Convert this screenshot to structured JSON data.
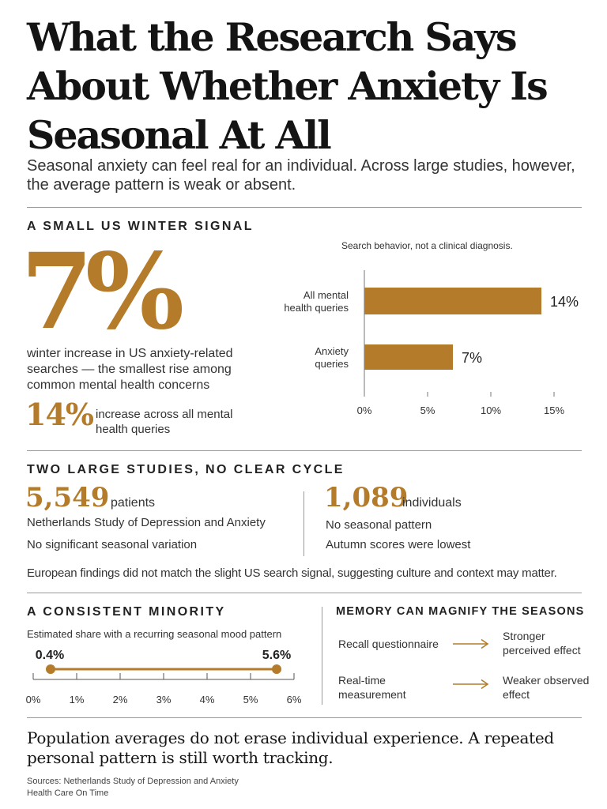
{
  "title": "What the Research Says About Whether Anxiety Is Seasonal At All",
  "subtitle": "Seasonal anxiety can feel real for an individual. Across large studies, however, the average pattern is weak or absent.",
  "section1": {
    "heading": "A SMALL US WINTER SIGNAL",
    "big_stat": "7%",
    "big_desc": "winter increase in US anxiety-related searches — the smallest rise among common mental health concerns",
    "small_stat": "14%",
    "small_desc": "increase across all mental health queries",
    "chart_note": "Search behavior, not a clinical diagnosis."
  },
  "section2": {
    "heading": "TWO LARGE STUDIES, NO CLEAR CYCLE",
    "study1": {
      "number": "5,549",
      "unit": "patients",
      "name": "Netherlands Study of Depression and Anxiety",
      "finding": "No significant seasonal variation"
    },
    "study2": {
      "number": "1,089",
      "unit": "individuals",
      "name": "No seasonal pattern",
      "finding": "Autumn scores were lowest"
    },
    "note": "European findings did not match the slight US search signal, suggesting culture and context may matter."
  },
  "section3": {
    "heading": "A CONSISTENT MINORITY",
    "note": "Estimated share with a recurring seasonal mood pattern"
  },
  "section4": {
    "heading": "MEMORY CAN MAGNIFY THE SEASONS",
    "rows": [
      {
        "method": "Recall questionnaire",
        "result": "Stronger perceived effect"
      },
      {
        "method": "Real-time measurement",
        "result": "Weaker observed effect"
      }
    ]
  },
  "footer": {
    "text": "Population averages do not erase individual experience. A repeated personal pattern is still worth tracking.",
    "sources_line1": "Sources: Netherlands Study of Depression and Anxiety",
    "sources_line2": "Health Care On Time"
  },
  "colors": {
    "accent": "#b47c2a",
    "text": "#222222",
    "rule": "#9a9a9a"
  },
  "chart_data": [
    {
      "type": "bar",
      "orientation": "horizontal",
      "categories": [
        "All mental health queries",
        "Anxiety queries"
      ],
      "values": [
        14,
        7
      ],
      "value_labels": [
        "14%",
        "7%"
      ],
      "x_ticks": [
        "0%",
        "5%",
        "10%",
        "15%"
      ],
      "xlim": [
        0,
        15
      ],
      "grid": false
    },
    {
      "type": "range",
      "low": 0.4,
      "high": 5.6,
      "low_label": "0.4%",
      "high_label": "5.6%",
      "x_ticks": [
        "0%",
        "1%",
        "2%",
        "3%",
        "4%",
        "5%",
        "6%"
      ],
      "xlim": [
        0,
        6
      ]
    }
  ]
}
